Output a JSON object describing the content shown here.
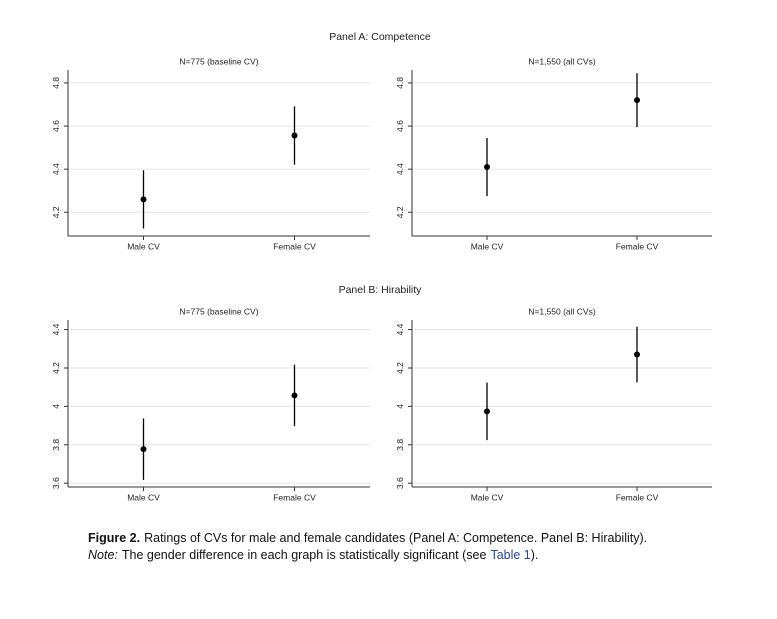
{
  "chart_data": [
    {
      "type": "errorbar",
      "title": "N=775 (baseline CV)",
      "categories": [
        "Male CV",
        "Female CV"
      ],
      "values": [
        4.26,
        4.556
      ],
      "errors": [
        0.135,
        0.135
      ],
      "color": "#000000",
      "ylim": [
        4.09,
        4.86
      ],
      "yticks": [
        4.2,
        4.4,
        4.6,
        4.8
      ],
      "grid": true
    },
    {
      "type": "errorbar",
      "title": "N=1,550 (all CVs)",
      "categories": [
        "Male CV",
        "Female CV"
      ],
      "values": [
        4.41,
        4.72
      ],
      "errors": [
        0.135,
        0.125
      ],
      "color": "#000000",
      "ylim": [
        4.09,
        4.86
      ],
      "yticks": [
        4.2,
        4.4,
        4.6,
        4.8
      ],
      "grid": true
    },
    {
      "type": "errorbar",
      "title": "N=775 (baseline CV)",
      "categories": [
        "Male CV",
        "Female CV"
      ],
      "values": [
        3.777,
        4.057
      ],
      "errors": [
        0.16,
        0.16
      ],
      "color": "#000000",
      "ylim": [
        3.58,
        4.45
      ],
      "yticks": [
        3.6,
        3.8,
        4,
        4.2,
        4.4
      ],
      "grid": true
    },
    {
      "type": "errorbar",
      "title": "N=1,550 (all CVs)",
      "categories": [
        "Male CV",
        "Female CV"
      ],
      "values": [
        3.974,
        4.27
      ],
      "errors": [
        0.15,
        0.145
      ],
      "color": "#000000",
      "ylim": [
        3.58,
        4.45
      ],
      "yticks": [
        3.6,
        3.8,
        4,
        4.2,
        4.4
      ],
      "grid": true
    }
  ],
  "panel_titles": [
    "Panel A: Competence",
    "Panel B: Hirability"
  ],
  "caption": {
    "label": "Figure 2.",
    "text": "Ratings of CVs for male and female candidates (Panel A: Competence. Panel B: Hirability).",
    "note_label": "Note:",
    "note_text": "The gender difference in each graph is statistically significant (see",
    "link": "Table 1",
    "note_end": ")."
  }
}
